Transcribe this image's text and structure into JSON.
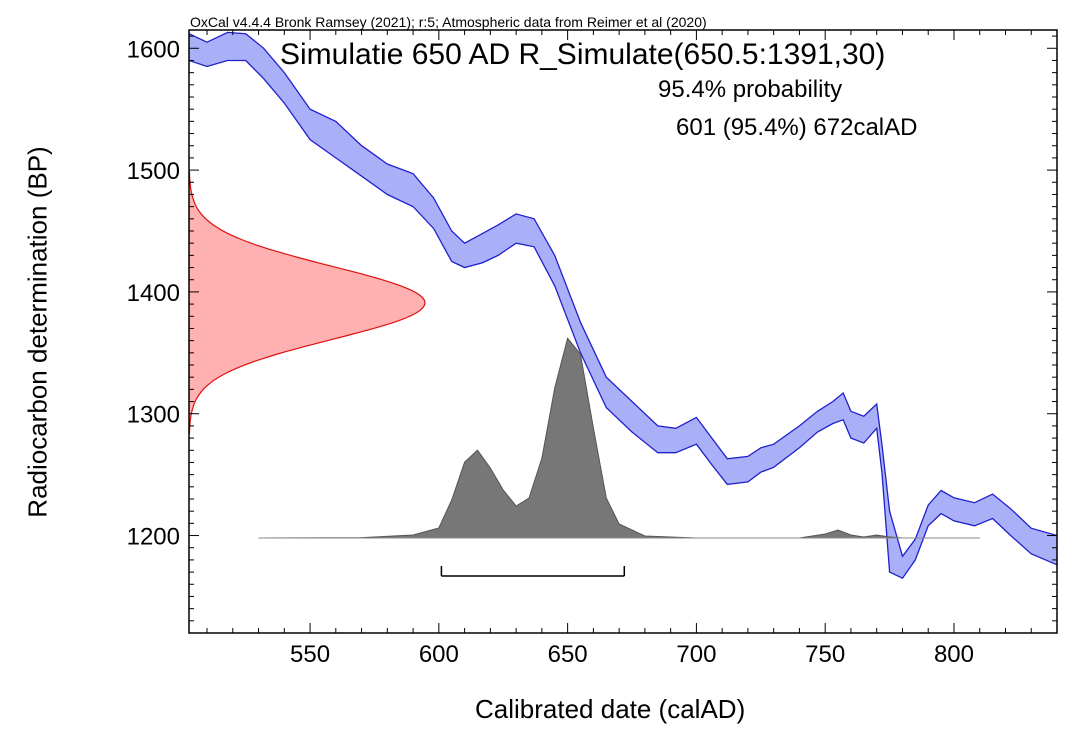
{
  "chart_data": {
    "type": "area",
    "header": "OxCal v4.4.4 Bronk Ramsey (2021); r:5; Atmospheric data from Reimer et al (2020)",
    "title": "Simulatie 650 AD R_Simulate(650.5:1391,30)",
    "annotation_probability": "95.4% probability",
    "annotation_range": "601 (95.4%) 672calAD",
    "xlabel": "Calibrated date (calAD)",
    "ylabel": "Radiocarbon determination (BP)",
    "xlim": [
      503,
      840
    ],
    "ylim": [
      1120,
      1615
    ],
    "x_ticks": [
      550,
      600,
      650,
      700,
      750,
      800
    ],
    "y_ticks": [
      1200,
      1300,
      1400,
      1500,
      1600
    ],
    "colors": {
      "calibration_band": "#aab0f8",
      "calibration_edge": "#2020cc",
      "measurement_fill": "#ffb0b0",
      "measurement_edge": "#dd1111",
      "posterior_fill": "#777777",
      "axis": "#000000"
    },
    "measurement": {
      "mean": 1391,
      "sd": 30
    },
    "range_bar": {
      "from": 601,
      "to": 672,
      "probability": 95.4
    },
    "calibration_curve": {
      "x": [
        503,
        510,
        518,
        525,
        532,
        540,
        550,
        560,
        570,
        580,
        590,
        598,
        605,
        610,
        617,
        623,
        630,
        637,
        645,
        655,
        665,
        675,
        685,
        692,
        700,
        706,
        712,
        720,
        725,
        730,
        740,
        747,
        753,
        757,
        760,
        765,
        770,
        772,
        775,
        780,
        785,
        790,
        795,
        800,
        808,
        815,
        822,
        830,
        840
      ],
      "upper": [
        1612,
        1605,
        1613,
        1612,
        1600,
        1580,
        1550,
        1540,
        1520,
        1505,
        1497,
        1477,
        1450,
        1440,
        1448,
        1455,
        1464,
        1460,
        1430,
        1375,
        1330,
        1310,
        1290,
        1288,
        1297,
        1280,
        1263,
        1265,
        1272,
        1275,
        1290,
        1302,
        1310,
        1317,
        1302,
        1298,
        1308,
        1275,
        1220,
        1183,
        1197,
        1225,
        1237,
        1231,
        1227,
        1234,
        1222,
        1206,
        1200
      ],
      "lower": [
        1590,
        1585,
        1590,
        1590,
        1575,
        1555,
        1525,
        1510,
        1495,
        1480,
        1470,
        1452,
        1425,
        1420,
        1424,
        1430,
        1440,
        1437,
        1405,
        1350,
        1305,
        1285,
        1268,
        1268,
        1275,
        1258,
        1242,
        1244,
        1252,
        1256,
        1272,
        1285,
        1292,
        1295,
        1280,
        1276,
        1288,
        1252,
        1170,
        1165,
        1180,
        1208,
        1218,
        1212,
        1208,
        1214,
        1200,
        1185,
        1176
      ]
    },
    "posterior": {
      "x": [
        530,
        570,
        590,
        600,
        605,
        610,
        615,
        620,
        625,
        630,
        635,
        640,
        645,
        650,
        655,
        660,
        665,
        670,
        680,
        700,
        740,
        750,
        755,
        760,
        765,
        770,
        775,
        780,
        800,
        810
      ],
      "density": [
        0,
        0.002,
        0.015,
        0.05,
        0.19,
        0.38,
        0.44,
        0.35,
        0.24,
        0.16,
        0.2,
        0.4,
        0.75,
        1.0,
        0.92,
        0.55,
        0.2,
        0.07,
        0.01,
        0,
        0,
        0.02,
        0.04,
        0.015,
        0.005,
        0.015,
        0.005,
        0,
        0,
        0
      ]
    }
  }
}
